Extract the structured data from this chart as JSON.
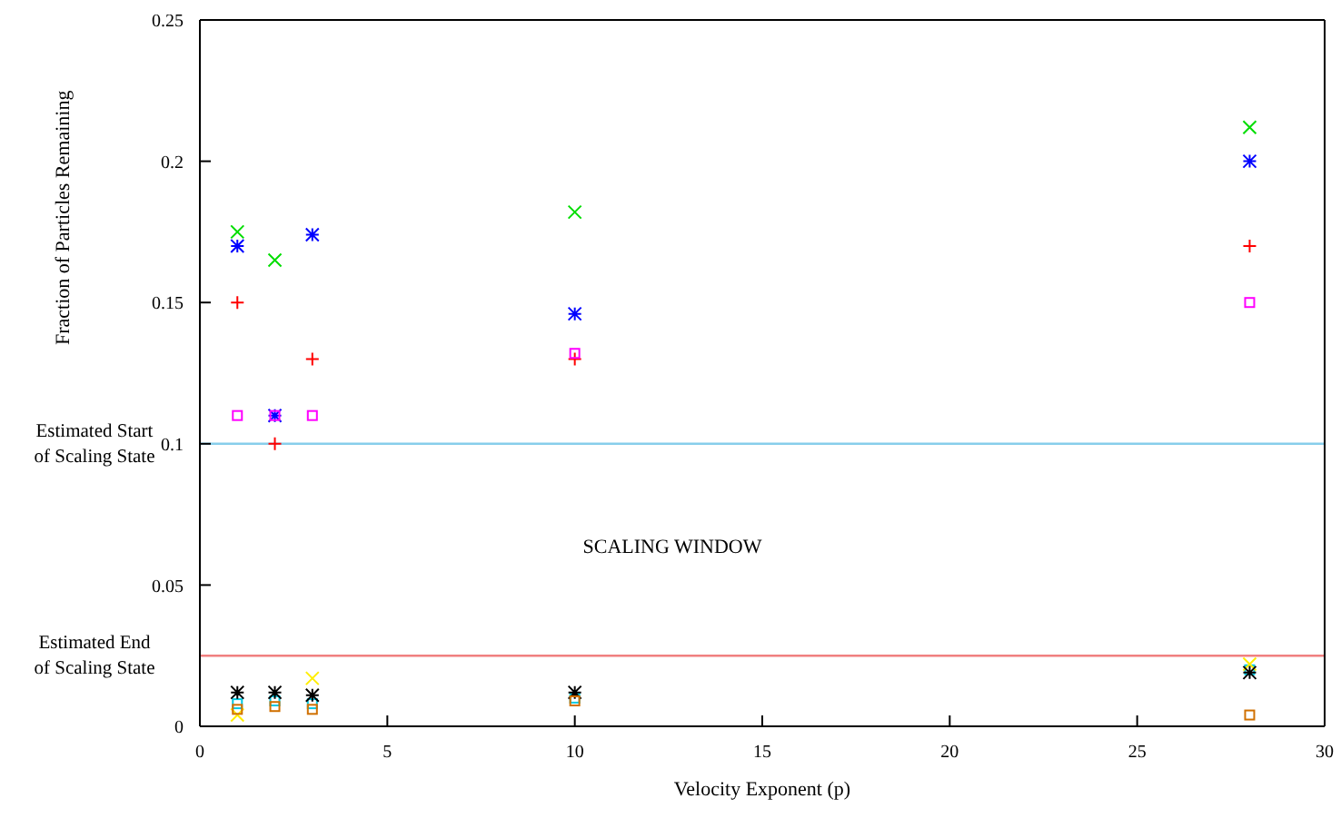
{
  "chart_data": {
    "type": "scatter",
    "xlabel": "Velocity Exponent (p)",
    "ylabel": "Fraction of Particles Remaining",
    "x": [
      1,
      2,
      3,
      10,
      28
    ],
    "xlim": [
      0,
      30
    ],
    "xticks": [
      0,
      5,
      10,
      15,
      20,
      25,
      30
    ],
    "ylim": [
      0,
      0.25
    ],
    "yticks": [
      0,
      0.05,
      0.1,
      0.15,
      0.2,
      0.25
    ],
    "grid": false,
    "legend": false,
    "series": [
      {
        "color": "#ff0000",
        "marker": "plus",
        "values": [
          0.15,
          0.1,
          0.13,
          0.13,
          0.17
        ]
      },
      {
        "color": "#00dd00",
        "marker": "cross",
        "values": [
          0.175,
          0.165,
          null,
          0.182,
          0.212
        ]
      },
      {
        "color": "#0000ff",
        "values": [
          0.17,
          0.11,
          0.174,
          0.146,
          0.2
        ]
      },
      {
        "color": "#ff00ff",
        "marker": "square",
        "values": [
          0.11,
          0.11,
          0.11,
          0.132,
          0.15
        ]
      },
      {
        "color": "#00c8e0",
        "marker": "square",
        "values": [
          0.008,
          0.009,
          0.008,
          0.01,
          0.02
        ]
      },
      {
        "color": "#ffee00",
        "marker": "cross",
        "values": [
          0.004,
          null,
          0.017,
          null,
          0.022
        ]
      },
      {
        "color": "#000000",
        "values": [
          0.012,
          0.012,
          0.011,
          0.012,
          0.019
        ]
      },
      {
        "color": "#d07000",
        "marker": "square",
        "values": [
          0.006,
          0.007,
          0.006,
          0.009,
          0.004
        ]
      }
    ],
    "ref_lines": [
      {
        "axis": "y",
        "value": 0.1,
        "label": "Estimated Start of Scaling State",
        "color": "#87ceeb"
      },
      {
        "axis": "y",
        "value": 0.025,
        "label": "Estimated End of Scaling State",
        "color": "#f08080"
      }
    ],
    "annotations": [
      "SCALING WINDOW"
    ]
  }
}
